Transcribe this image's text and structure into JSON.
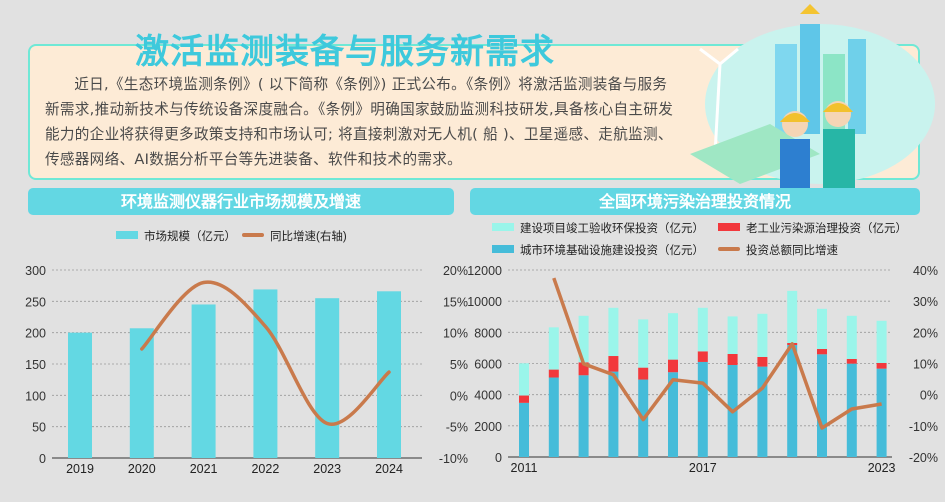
{
  "header": {
    "title": "激活监测装备与服务新需求",
    "body": "近日,《生态环境监测条例》( 以下简称《条例》) 正式公布。《条例》将激活监测装备与服务新需求,推动新技术与传统设备深度融合。《条例》明确国家鼓励监测科技研发,具备核心自主研发能力的企业将获得更多政策支持和市场认可; 将直接刺激对无人机( 船 )、卫星遥感、走航监测、传感器网络、AI数据分析平台等先进装备、软件和技术的需求。"
  },
  "illustration": {
    "icon": "workers-wind-solar-city-illustration"
  },
  "chart_data": [
    {
      "type": "bar+line",
      "title": "环境监测仪器行业市场规模及增速",
      "legend_position": "top",
      "grid": true,
      "categories": [
        "2019",
        "2020",
        "2021",
        "2022",
        "2023",
        "2024"
      ],
      "series": [
        {
          "name": "市场规模（亿元）",
          "type": "bar",
          "axis": "left",
          "color": "#63d8e3",
          "values": [
            200,
            207,
            245,
            269,
            255,
            266
          ]
        },
        {
          "name": "同比增速(右轴)",
          "type": "line",
          "axis": "right",
          "color": "#c97a4c",
          "smooth": true,
          "values": [
            null,
            7.4,
            18.0,
            11.0,
            -4.5,
            3.7
          ]
        }
      ],
      "ylim": [
        0,
        300
      ],
      "yticks": [
        "0",
        "50",
        "100",
        "150",
        "200",
        "250",
        "300"
      ],
      "y2lim": [
        -10,
        20
      ],
      "y2ticks": [
        "-10%",
        "-5%",
        "0%",
        "5%",
        "10%",
        "15%",
        "20%"
      ]
    },
    {
      "type": "stacked-bar+line",
      "title": "全国环境污染治理投资情况",
      "legend_position": "top",
      "grid": true,
      "categories": [
        "2011",
        "2012",
        "2013",
        "2014",
        "2015",
        "2016",
        "2017",
        "2018",
        "2019",
        "2020",
        "2021",
        "2022",
        "2023"
      ],
      "xticks": [
        "2011",
        "2017",
        "2023"
      ],
      "series": [
        {
          "name": "城市环境基础设施建设投资（亿元）",
          "type": "bar",
          "axis": "left",
          "color": "#45bcd9",
          "values": [
            3475,
            5100,
            5245,
            5480,
            4970,
            5440,
            6100,
            5905,
            5800,
            7185,
            6590,
            5990,
            5670
          ]
        },
        {
          "name": "老工业污染源治理投资（亿元）",
          "type": "bar",
          "axis": "left",
          "color": "#f2383c",
          "values": [
            470,
            510,
            830,
            1000,
            765,
            810,
            680,
            705,
            620,
            130,
            340,
            300,
            365
          ]
        },
        {
          "name": "建设项目竣工验收环保投资（亿元）",
          "type": "bar",
          "axis": "left",
          "color": "#9af5ea",
          "values": [
            2070,
            2710,
            2985,
            3095,
            3095,
            2980,
            2795,
            2410,
            2770,
            3345,
            2580,
            2770,
            2705
          ]
        },
        {
          "name": "投资总额同比增速",
          "type": "line",
          "axis": "right",
          "color": "#c97a4c",
          "values": [
            null,
            37.4,
            9.9,
            6.4,
            -8.0,
            4.8,
            3.7,
            -5.5,
            2.1,
            16.3,
            -10.7,
            -4.6,
            -3.0
          ]
        }
      ],
      "ylim": [
        0,
        12000
      ],
      "yticks": [
        "0",
        "2000",
        "4000",
        "6000",
        "8000",
        "10000",
        "12000"
      ],
      "y2lim": [
        -20,
        40
      ],
      "y2ticks": [
        "-20%",
        "-10%",
        "0%",
        "10%",
        "20%",
        "30%",
        "40%"
      ]
    }
  ]
}
